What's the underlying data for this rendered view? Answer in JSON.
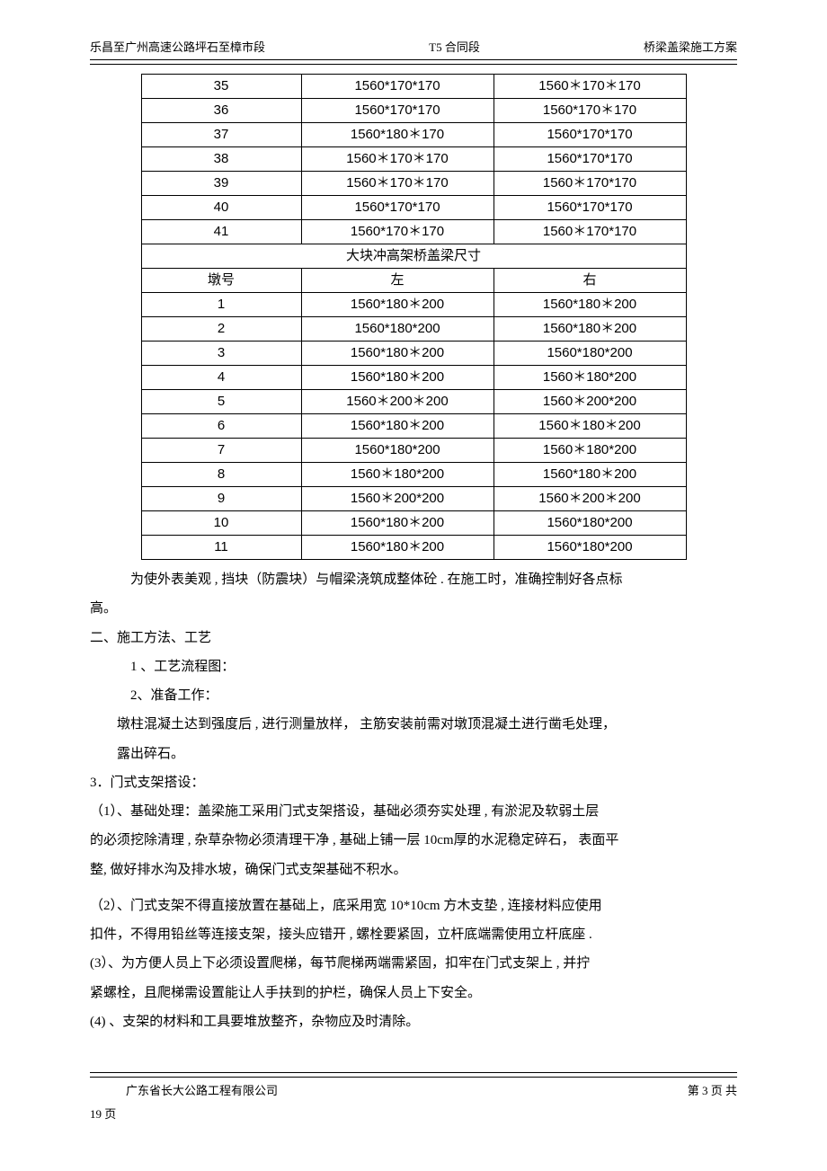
{
  "header": {
    "left": "乐昌至广州高速公路坪石至樟市段",
    "center": "T5 合同段",
    "right": "桥梁盖梁施工方案"
  },
  "table": {
    "col_widths": [
      "178px",
      "214px",
      "214px"
    ],
    "section1_rows": [
      [
        "35",
        "1560*170*170",
        "1560＊170＊170"
      ],
      [
        "36",
        "1560*170*170",
        "1560*170＊170"
      ],
      [
        "37",
        "1560*180＊170",
        "1560*170*170"
      ],
      [
        "38",
        "1560＊170＊170",
        "1560*170*170"
      ],
      [
        "39",
        "1560＊170＊170",
        "1560＊170*170"
      ],
      [
        "40",
        "1560*170*170",
        "1560*170*170"
      ],
      [
        "41",
        "1560*170＊170",
        "1560＊170*170"
      ]
    ],
    "section2_title": "大块冲高架桥盖梁尺寸",
    "section2_header": [
      "墩号",
      "左",
      "右"
    ],
    "section2_rows": [
      [
        "1",
        "1560*180＊200",
        "1560*180＊200"
      ],
      [
        "2",
        "1560*180*200",
        "1560*180＊200"
      ],
      [
        "3",
        "1560*180＊200",
        "1560*180*200"
      ],
      [
        "4",
        "1560*180＊200",
        "1560＊180*200"
      ],
      [
        "5",
        "1560＊200＊200",
        "1560＊200*200"
      ],
      [
        "6",
        "1560*180＊200",
        "1560＊180＊200"
      ],
      [
        "7",
        "1560*180*200",
        "1560＊180*200"
      ],
      [
        "8",
        "1560＊180*200",
        "1560*180＊200"
      ],
      [
        "9",
        "1560＊200*200",
        "1560＊200＊200"
      ],
      [
        "10",
        "1560*180＊200",
        "1560*180*200"
      ],
      [
        "11",
        "1560*180＊200",
        "1560*180*200"
      ]
    ]
  },
  "paragraphs": {
    "p1": "为使外表美观 , 挡块（防震块）与帽梁浇筑成整体砼   . 在施工时，准确控制好各点标",
    "p1b": "高。",
    "p2": "二、施工方法、工艺",
    "p3": "1 、工艺流程图：",
    "p4": "2、准备工作：",
    "p5": "墩柱混凝土达到强度后  , 进行测量放样， 主筋安装前需对墩顶混凝土进行凿毛处理，",
    "p5b": "露出碎石。",
    "p6": "3．门式支架搭设：",
    "p7": "（1）、基础处理：盖梁施工采用门式支架搭设，基础必须夯实处理     , 有淤泥及软弱土层",
    "p7b": "的必须挖除清理 , 杂草杂物必须清理干净   , 基础上铺一层 10cm厚的水泥稳定碎石， 表面平",
    "p7c": "整, 做好排水沟及排水坡，确保门式支架基础不积水。",
    "p8": "（2）、门式支架不得直接放置在基础上，底采用宽    10*10cm 方木支垫 , 连接材料应使用",
    "p8b": "扣件，不得用铅丝等连接支架，接头应错开   , 螺栓要紧固，立杆底端需使用立杆底座    .",
    "p9": "(3）、为方便人员上下必须设置爬梯，每节爬梯两端需紧固，扣牢在门式支架上     , 并拧",
    "p9b": "紧螺栓，且爬梯需设置能让人手扶到的护栏，确保人员上下安全。",
    "p10": "(4) 、支架的材料和工具要堆放整齐，杂物应及时清除。"
  },
  "footer": {
    "left": "广东省长大公路工程有限公司",
    "right": "第 3 页 共",
    "continue": "19 页"
  }
}
